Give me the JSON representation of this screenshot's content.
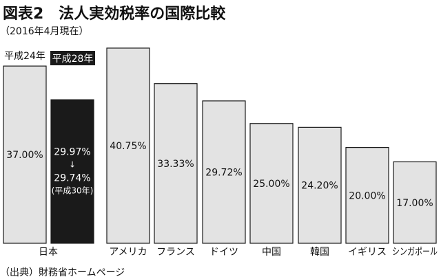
{
  "title": "図表2　法人実効税率の国際比較",
  "subtitle": "（2016年4月現在）",
  "source": "（出典）財務省ホームページ",
  "colors": {
    "bar_light": "#e3e3e3",
    "bar_dark": "#1a1a1a",
    "stroke": "#1a1a1a",
    "text": "#111111",
    "text_on_dark": "#ffffff"
  },
  "chart_data": {
    "type": "bar",
    "title": "図表2　法人実効税率の国際比較",
    "subtitle": "（2016年4月現在）",
    "unit": "%",
    "legend": [
      {
        "label": "平成24年",
        "style": "light"
      },
      {
        "label": "平成28年",
        "style": "dark"
      }
    ],
    "bars": [
      {
        "category": "日本",
        "series": "平成24年",
        "value": 37.0,
        "label": "37.00%",
        "style": "light"
      },
      {
        "category": "日本",
        "series": "平成28年",
        "value": 29.97,
        "label": "29.97%",
        "style": "dark",
        "annotation": {
          "arrow": "↓",
          "value": 29.74,
          "value_label": "29.74%",
          "note": "(平成30年)"
        }
      },
      {
        "category": "アメリカ",
        "value": 40.75,
        "label": "40.75%",
        "style": "light"
      },
      {
        "category": "フランス",
        "value": 33.33,
        "label": "33.33%",
        "style": "light"
      },
      {
        "category": "ドイツ",
        "value": 29.72,
        "label": "29.72%",
        "style": "light"
      },
      {
        "category": "中国",
        "value": 25.0,
        "label": "25.00%",
        "style": "light"
      },
      {
        "category": "韓国",
        "value": 24.2,
        "label": "24.20%",
        "style": "light"
      },
      {
        "category": "イギリス",
        "value": 20.0,
        "label": "20.00%",
        "style": "light"
      },
      {
        "category": "シンガポール",
        "value": 17.0,
        "label": "17.00%",
        "style": "light"
      }
    ],
    "categories": [
      "日本",
      "アメリカ",
      "フランス",
      "ドイツ",
      "中国",
      "韓国",
      "イギリス",
      "シンガポール"
    ],
    "ylim": [
      0,
      40.75
    ],
    "grid": false
  }
}
